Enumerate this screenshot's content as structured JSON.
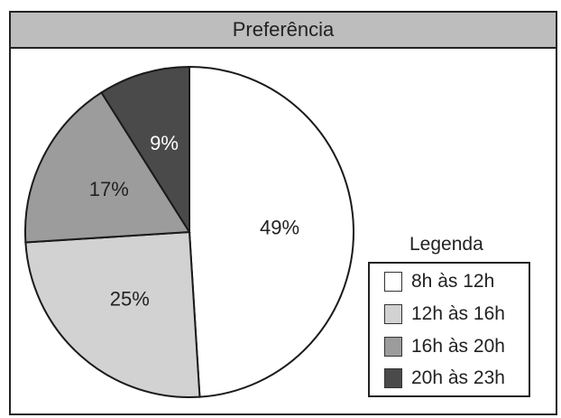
{
  "chart_data": {
    "type": "pie",
    "title": "Preferência",
    "categories": [
      "8h às 12h",
      "12h às 16h",
      "16h às 20h",
      "20h às 23h"
    ],
    "values": [
      49,
      25,
      17,
      9
    ],
    "labels": [
      "49%",
      "25%",
      "17%",
      "9%"
    ],
    "colors": [
      "#ffffff",
      "#d2d2d2",
      "#9c9c9c",
      "#4a4a4a"
    ],
    "label_colors": [
      "#222222",
      "#222222",
      "#222222",
      "#ffffff"
    ],
    "legend": {
      "title": "Legenda",
      "position": "bottom-right",
      "items": [
        "8h às 12h",
        "12h às 16h",
        "16h às 20h",
        "20h às 23h"
      ]
    }
  }
}
